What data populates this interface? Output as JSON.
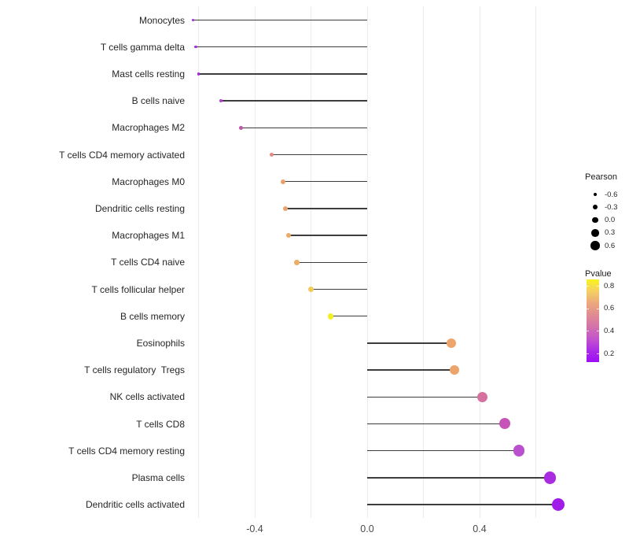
{
  "figure": {
    "background": "#ffffff",
    "grid_color": "#ececec",
    "stem_color": "#3d3d3d",
    "axis_text_color": "#4a4a4a",
    "label_text_color": "#262626"
  },
  "chart_data": {
    "type": "scatter",
    "subtype": "lollipop",
    "orientation": "horizontal",
    "title": "",
    "xlabel": "",
    "ylabel": "",
    "xlim": [
      -0.72,
      0.74
    ],
    "x_gridlines": [
      -0.6,
      -0.4,
      -0.2,
      0.0,
      0.2,
      0.4,
      0.6
    ],
    "x_ticks": [
      {
        "value": -0.4,
        "label": "-0.4"
      },
      {
        "value": 0.0,
        "label": "0.0"
      },
      {
        "value": 0.4,
        "label": "0.4"
      }
    ],
    "categories": [
      "Monocytes",
      "T cells gamma delta",
      "Mast cells resting",
      "B cells naive",
      "Macrophages M2",
      "T cells CD4 memory activated",
      "Macrophages M0",
      "Dendritic cells resting",
      "Macrophages M1",
      "T cells CD4 naive",
      "T cells follicular helper",
      "B cells memory",
      "Eosinophils",
      "T cells regulatory  Tregs",
      "NK cells activated",
      "T cells CD8",
      "T cells CD4 memory resting",
      "Plasma cells",
      "Dendritic cells activated"
    ],
    "series": [
      {
        "name": "Pearson",
        "values": [
          -0.62,
          -0.61,
          -0.6,
          -0.52,
          -0.45,
          -0.34,
          -0.3,
          -0.29,
          -0.28,
          -0.25,
          -0.2,
          -0.13,
          0.3,
          0.31,
          0.41,
          0.49,
          0.54,
          0.65,
          0.68
        ]
      }
    ],
    "pvalues": [
      0.22,
      0.22,
      0.22,
      0.28,
      0.36,
      0.5,
      0.56,
      0.56,
      0.57,
      0.58,
      0.68,
      0.8,
      0.57,
      0.56,
      0.42,
      0.33,
      0.3,
      0.2,
      0.17
    ],
    "point_colors": [
      "#a42be1",
      "#a42be1",
      "#a62ae3",
      "#b13ed2",
      "#c158ab",
      "#e28a80",
      "#eaa06e",
      "#eba26c",
      "#ecaa67",
      "#edad65",
      "#f2ca59",
      "#f6ee25",
      "#eda56b",
      "#eca46b",
      "#d5709f",
      "#c754b7",
      "#bb50cf",
      "#a92ce1",
      "#a01de8"
    ],
    "legend": {
      "size_legend": {
        "title": "Pearson",
        "entries": [
          {
            "label": "-0.6",
            "value": -0.6
          },
          {
            "label": "-0.3",
            "value": -0.3
          },
          {
            "label": "0.0",
            "value": 0.0
          },
          {
            "label": "0.3",
            "value": 0.3
          },
          {
            "label": "0.6",
            "value": 0.6
          }
        ]
      },
      "color_legend": {
        "title": "Pvalue",
        "tick_labels": [
          "0.8",
          "0.6",
          "0.4",
          "0.2"
        ],
        "range_top": 0.85,
        "range_bottom": 0.13,
        "gradient_top_to_bottom": [
          "#f9f320",
          "#f5cf63",
          "#eca87c",
          "#e08b92",
          "#d472ab",
          "#c355cb",
          "#ac2be6",
          "#9c0ef5"
        ]
      }
    }
  }
}
